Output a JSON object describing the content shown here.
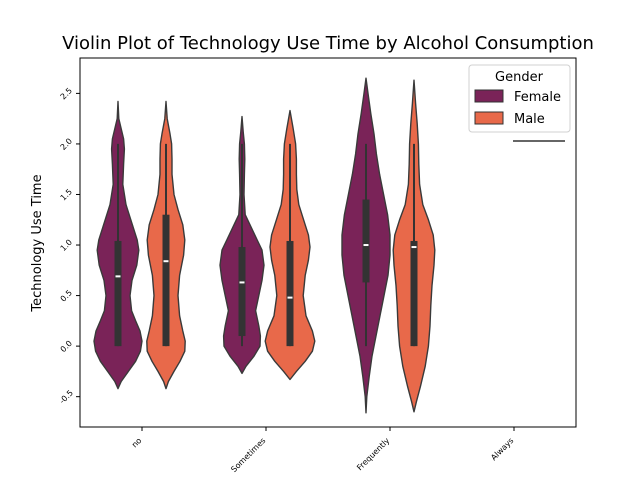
{
  "chart_data": {
    "type": "violin",
    "title": "Violin Plot of Technology Use Time by Alcohol Consumption",
    "xlabel": "",
    "ylabel": "Technology Use Time",
    "categories": [
      "no",
      "Sometimes",
      "Frequently",
      "Always"
    ],
    "yticks": [
      "-0.5",
      "0.0",
      "0.5",
      "1.0",
      "1.5",
      "2.0",
      "2.5"
    ],
    "ylim": [
      -0.8,
      2.85
    ],
    "legend": {
      "title": "Gender",
      "placement": "upper-right",
      "entries": [
        "Female",
        "Male"
      ]
    },
    "series": [
      {
        "name": "Female",
        "color": "#7a2358",
        "violins": [
          {
            "category": "no",
            "profile": [
              [
                -0.42,
                0
              ],
              [
                -0.35,
                0.08
              ],
              [
                -0.25,
                0.26
              ],
              [
                -0.15,
                0.44
              ],
              [
                -0.05,
                0.56
              ],
              [
                0.05,
                0.6
              ],
              [
                0.15,
                0.55
              ],
              [
                0.25,
                0.44
              ],
              [
                0.35,
                0.34
              ],
              [
                0.5,
                0.3
              ],
              [
                0.65,
                0.35
              ],
              [
                0.8,
                0.47
              ],
              [
                0.95,
                0.52
              ],
              [
                1.05,
                0.48
              ],
              [
                1.2,
                0.36
              ],
              [
                1.4,
                0.2
              ],
              [
                1.6,
                0.12
              ],
              [
                1.8,
                0.14
              ],
              [
                1.95,
                0.16
              ],
              [
                2.05,
                0.14
              ],
              [
                2.15,
                0.08
              ],
              [
                2.25,
                0.02
              ],
              [
                2.42,
                0
              ]
            ],
            "q1": 0.0,
            "median": 0.69,
            "q3": 1.04,
            "whisker_low": 0.0,
            "whisker_high": 2.0
          },
          {
            "category": "Sometimes",
            "profile": [
              [
                -0.27,
                0
              ],
              [
                -0.2,
                0.1
              ],
              [
                -0.1,
                0.3
              ],
              [
                0.0,
                0.45
              ],
              [
                0.1,
                0.46
              ],
              [
                0.2,
                0.42
              ],
              [
                0.35,
                0.34
              ],
              [
                0.5,
                0.42
              ],
              [
                0.65,
                0.5
              ],
              [
                0.8,
                0.55
              ],
              [
                0.95,
                0.5
              ],
              [
                1.05,
                0.38
              ],
              [
                1.2,
                0.2
              ],
              [
                1.3,
                0.08
              ],
              [
                1.5,
                0.05
              ],
              [
                1.7,
                0.06
              ],
              [
                1.85,
                0.07
              ],
              [
                2.0,
                0.06
              ],
              [
                2.12,
                0.03
              ],
              [
                2.27,
                0
              ]
            ],
            "q1": 0.1,
            "median": 0.63,
            "q3": 0.98,
            "whisker_low": 0.0,
            "whisker_high": 2.0
          },
          {
            "category": "Frequently",
            "profile": [
              [
                -0.66,
                0
              ],
              [
                -0.5,
                0.02
              ],
              [
                -0.3,
                0.08
              ],
              [
                -0.1,
                0.15
              ],
              [
                0.1,
                0.25
              ],
              [
                0.3,
                0.35
              ],
              [
                0.5,
                0.45
              ],
              [
                0.7,
                0.55
              ],
              [
                0.9,
                0.6
              ],
              [
                1.1,
                0.6
              ],
              [
                1.3,
                0.54
              ],
              [
                1.5,
                0.44
              ],
              [
                1.7,
                0.34
              ],
              [
                1.9,
                0.26
              ],
              [
                2.1,
                0.2
              ],
              [
                2.3,
                0.12
              ],
              [
                2.5,
                0.05
              ],
              [
                2.65,
                0
              ]
            ],
            "q1": 0.63,
            "median": 1.0,
            "q3": 1.45,
            "whisker_low": 0.0,
            "whisker_high": 2.0
          }
        ]
      },
      {
        "name": "Male",
        "color": "#e8694a",
        "violins": [
          {
            "category": "no",
            "profile": [
              [
                -0.42,
                0
              ],
              [
                -0.35,
                0.06
              ],
              [
                -0.25,
                0.2
              ],
              [
                -0.15,
                0.35
              ],
              [
                -0.05,
                0.47
              ],
              [
                0.05,
                0.48
              ],
              [
                0.15,
                0.42
              ],
              [
                0.3,
                0.34
              ],
              [
                0.5,
                0.3
              ],
              [
                0.7,
                0.34
              ],
              [
                0.9,
                0.44
              ],
              [
                1.05,
                0.47
              ],
              [
                1.2,
                0.42
              ],
              [
                1.35,
                0.3
              ],
              [
                1.5,
                0.2
              ],
              [
                1.7,
                0.15
              ],
              [
                1.85,
                0.15
              ],
              [
                2.0,
                0.14
              ],
              [
                2.1,
                0.1
              ],
              [
                2.25,
                0.03
              ],
              [
                2.42,
                0
              ]
            ],
            "q1": 0.0,
            "median": 0.84,
            "q3": 1.3,
            "whisker_low": 0.0,
            "whisker_high": 2.0
          },
          {
            "category": "Sometimes",
            "profile": [
              [
                -0.33,
                0
              ],
              [
                -0.25,
                0.16
              ],
              [
                -0.15,
                0.38
              ],
              [
                -0.05,
                0.56
              ],
              [
                0.05,
                0.62
              ],
              [
                0.15,
                0.56
              ],
              [
                0.3,
                0.4
              ],
              [
                0.5,
                0.33
              ],
              [
                0.7,
                0.38
              ],
              [
                0.85,
                0.46
              ],
              [
                0.98,
                0.5
              ],
              [
                1.1,
                0.46
              ],
              [
                1.25,
                0.34
              ],
              [
                1.4,
                0.22
              ],
              [
                1.55,
                0.17
              ],
              [
                1.7,
                0.16
              ],
              [
                1.85,
                0.16
              ],
              [
                2.0,
                0.14
              ],
              [
                2.15,
                0.08
              ],
              [
                2.33,
                0
              ]
            ],
            "q1": 0.0,
            "median": 0.48,
            "q3": 1.04,
            "whisker_low": 0.0,
            "whisker_high": 2.0
          },
          {
            "category": "Frequently",
            "profile": [
              [
                -0.65,
                0
              ],
              [
                -0.55,
                0.06
              ],
              [
                -0.4,
                0.16
              ],
              [
                -0.2,
                0.28
              ],
              [
                0.0,
                0.36
              ],
              [
                0.2,
                0.4
              ],
              [
                0.4,
                0.42
              ],
              [
                0.6,
                0.45
              ],
              [
                0.8,
                0.5
              ],
              [
                0.95,
                0.52
              ],
              [
                1.1,
                0.48
              ],
              [
                1.25,
                0.36
              ],
              [
                1.4,
                0.22
              ],
              [
                1.6,
                0.14
              ],
              [
                1.8,
                0.12
              ],
              [
                2.0,
                0.11
              ],
              [
                2.2,
                0.08
              ],
              [
                2.4,
                0.04
              ],
              [
                2.63,
                0
              ]
            ],
            "q1": 0.0,
            "median": 0.98,
            "q3": 1.04,
            "whisker_low": 0.0,
            "whisker_high": 2.0
          }
        ]
      }
    ]
  }
}
